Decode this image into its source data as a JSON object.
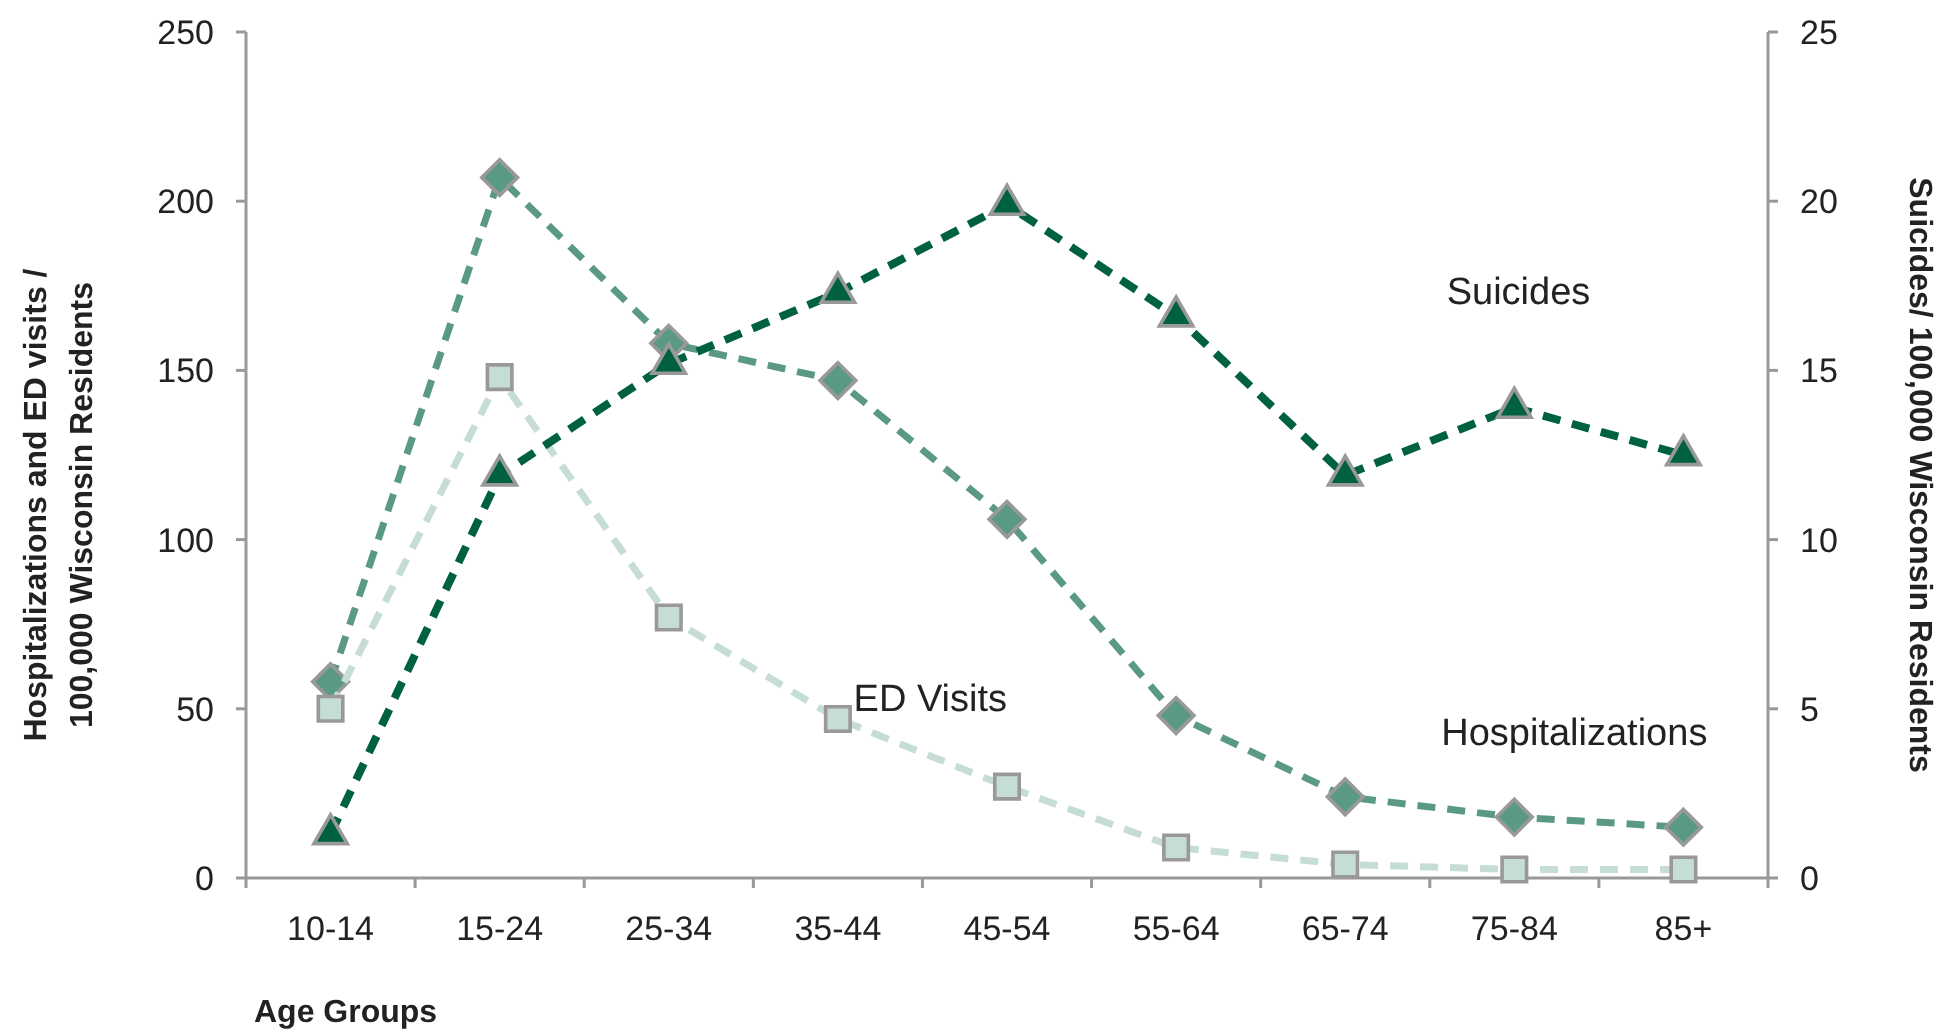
{
  "chart_data": {
    "type": "line",
    "xlabel": "Age Groups",
    "ylabel": "Hospitalizations and ED visits / 100,000 Wisconsin Residents",
    "y2label": "Suicides/ 100,000 Wisconsin Residents",
    "categories": [
      "10-14",
      "15-24",
      "25-34",
      "35-44",
      "45-54",
      "55-64",
      "65-74",
      "75-84",
      "85+"
    ],
    "ylim": [
      0,
      250
    ],
    "yticks": [
      0,
      50,
      100,
      150,
      200,
      250
    ],
    "y2lim": [
      0,
      25
    ],
    "y2ticks": [
      0,
      5,
      10,
      15,
      20,
      25
    ],
    "line_style": "dashed",
    "series": [
      {
        "name": "Hospitalizations",
        "color": "#5b9a82",
        "marker": "diamond",
        "values": [
          58,
          207,
          158,
          147,
          106,
          48,
          24,
          18,
          15
        ]
      },
      {
        "name": "ED Visits",
        "color": "#c6ddd4",
        "marker": "square",
        "values": [
          50,
          148,
          77,
          47,
          27,
          9,
          4,
          2.5,
          2.5
        ]
      },
      {
        "name": "Suicides",
        "color": "#00613f",
        "marker": "triangle",
        "axis": "y2",
        "values": [
          1.3,
          11.9,
          15.2,
          17.3,
          19.9,
          16.6,
          11.9,
          13.9,
          12.5
        ]
      }
    ]
  }
}
